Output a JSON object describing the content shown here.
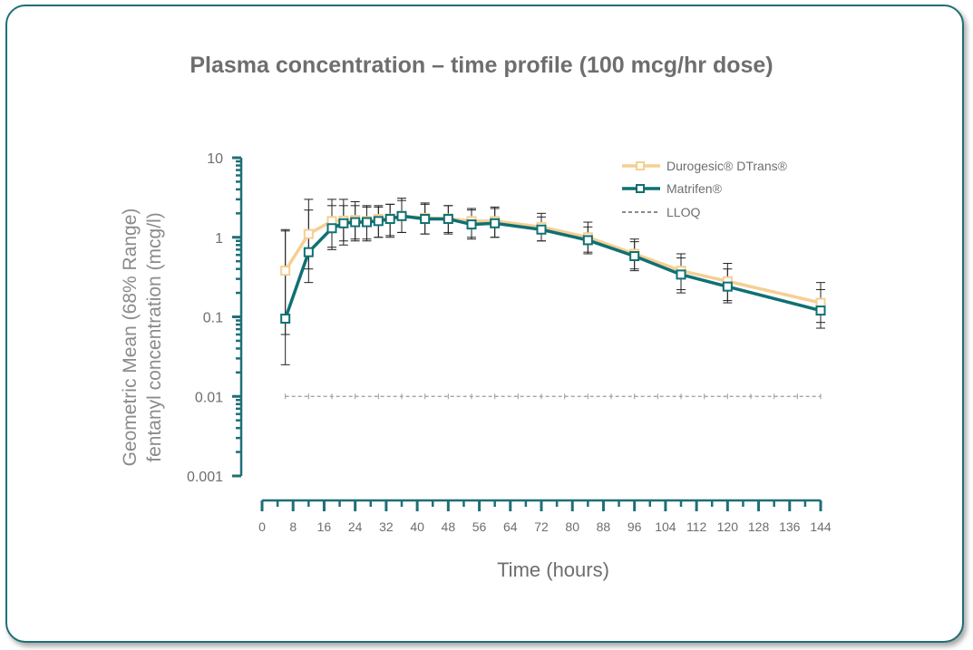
{
  "colors": {
    "frame": "#1f6f76",
    "axis": "#1f6f76",
    "durogesic": "#f5cf93",
    "matrifen": "#0f7074",
    "errorbar": "#222222",
    "lloq": "#9a9a9a",
    "text": "#6d6e70"
  },
  "chart_data": {
    "type": "line",
    "title": "Plasma concentration – time profile (100 mcg/hr dose)",
    "xlabel": "Time (hours)",
    "ylabel_lines": [
      "Geometric Mean (68% Range)",
      "fentanyl concentration (mcg/l)"
    ],
    "yscale": "log",
    "xlim": [
      0,
      144
    ],
    "ylim": [
      0.001,
      10
    ],
    "x_ticks": [
      0,
      8,
      16,
      24,
      32,
      40,
      48,
      56,
      64,
      72,
      80,
      88,
      96,
      104,
      112,
      120,
      128,
      136,
      144
    ],
    "x_tick_labels": [
      "0",
      "8",
      "16",
      "24",
      "32",
      "40",
      "48",
      "56",
      "64",
      "72",
      "80",
      "88",
      "96",
      "104",
      "112",
      "120",
      "128",
      "136",
      "144"
    ],
    "y_ticks": [
      0.001,
      0.01,
      0.1,
      1,
      10
    ],
    "y_tick_labels": [
      "0.001",
      "0.01",
      "0.1",
      "1",
      "10"
    ],
    "legend_position": "top-right",
    "grid": false,
    "series": [
      {
        "name": "Durogesic® DTrans®",
        "key": "durogesic",
        "x": [
          6,
          12,
          18,
          21,
          24,
          27,
          30,
          33,
          36,
          42,
          48,
          54,
          60,
          72,
          84,
          96,
          108,
          120,
          144
        ],
        "y": [
          0.38,
          1.1,
          1.6,
          1.62,
          1.65,
          1.6,
          1.7,
          1.72,
          1.85,
          1.75,
          1.72,
          1.6,
          1.6,
          1.35,
          1.0,
          0.62,
          0.38,
          0.28,
          0.15
        ],
        "err_low": [
          0.06,
          0.4,
          0.7,
          0.8,
          0.9,
          0.9,
          1.0,
          1.0,
          1.15,
          1.1,
          1.1,
          1.0,
          1.0,
          0.9,
          0.65,
          0.4,
          0.22,
          0.16,
          0.085
        ],
        "err_high": [
          1.25,
          2.2,
          2.5,
          2.5,
          2.5,
          2.4,
          2.4,
          2.6,
          2.9,
          2.6,
          2.5,
          2.3,
          2.4,
          2.0,
          1.55,
          0.95,
          0.62,
          0.47,
          0.27
        ]
      },
      {
        "name": "Matrifen®",
        "key": "matrifen",
        "x": [
          6,
          12,
          18,
          21,
          24,
          27,
          30,
          33,
          36,
          42,
          48,
          54,
          60,
          72,
          84,
          96,
          108,
          120,
          144
        ],
        "y": [
          0.095,
          0.65,
          1.3,
          1.5,
          1.55,
          1.55,
          1.6,
          1.7,
          1.85,
          1.7,
          1.7,
          1.45,
          1.5,
          1.25,
          0.92,
          0.58,
          0.34,
          0.24,
          0.12
        ],
        "err_low": [
          0.025,
          0.27,
          0.75,
          0.9,
          0.95,
          0.95,
          1.0,
          1.05,
          1.15,
          1.1,
          1.15,
          0.95,
          1.0,
          0.9,
          0.62,
          0.38,
          0.2,
          0.15,
          0.072
        ],
        "err_high": [
          1.2,
          3.0,
          3.0,
          3.0,
          2.8,
          2.5,
          2.5,
          2.6,
          3.1,
          2.7,
          2.5,
          2.2,
          2.3,
          1.8,
          1.35,
          0.88,
          0.55,
          0.4,
          0.22
        ]
      }
    ],
    "reference_lines": [
      {
        "name": "LLOQ",
        "y": 0.01,
        "x_from": 6,
        "x_to": 144
      }
    ]
  }
}
